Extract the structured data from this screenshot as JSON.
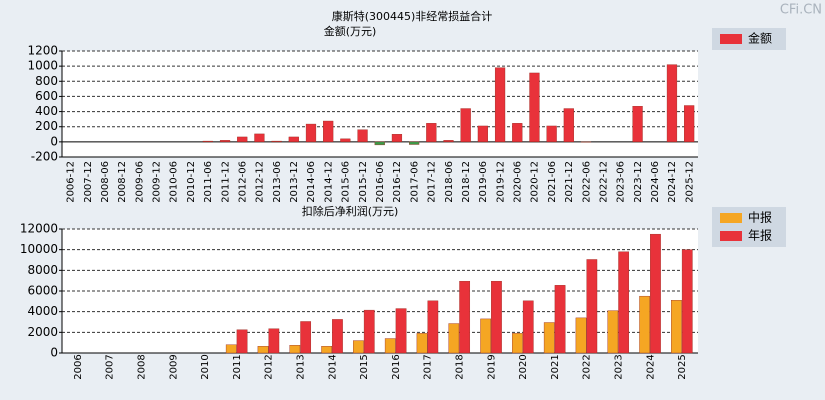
{
  "watermark": "CFi.CN",
  "chart_data": [
    {
      "type": "bar",
      "title": "康斯特(300445)非经常损益合计",
      "ylabel": "金额(万元)",
      "categories": [
        "2006-12",
        "2007-12",
        "2008-06",
        "2008-12",
        "2009-06",
        "2009-12",
        "2010-06",
        "2010-12",
        "2011-06",
        "2011-12",
        "2012-06",
        "2012-12",
        "2013-06",
        "2013-12",
        "2014-06",
        "2014-12",
        "2015-06",
        "2015-12",
        "2016-06",
        "2016-12",
        "2017-06",
        "2017-12",
        "2018-06",
        "2018-12",
        "2019-06",
        "2019-12",
        "2020-06",
        "2020-12",
        "2021-06",
        "2021-12",
        "2022-06",
        "2022-12",
        "2023-06",
        "2023-12",
        "2024-06",
        "2024-12",
        "2025-12"
      ],
      "series": [
        {
          "name": "金额",
          "color": "#e8323a",
          "negative_color": "#3a9a48",
          "values": [
            0,
            0,
            0,
            0,
            0,
            0,
            0,
            0,
            10,
            20,
            65,
            105,
            10,
            65,
            235,
            275,
            40,
            160,
            -40,
            100,
            -35,
            245,
            20,
            440,
            210,
            980,
            245,
            910,
            210,
            440,
            -5,
            0,
            0,
            470,
            0,
            1020,
            480
          ]
        }
      ],
      "ylim": [
        -200,
        1200
      ],
      "yticks": [
        -200,
        0,
        200,
        400,
        600,
        800,
        1000,
        1200
      ],
      "grid": true,
      "legend": "right"
    },
    {
      "type": "bar",
      "title": "扣除后净利润(万元)",
      "categories": [
        "2006",
        "2007",
        "2008",
        "2009",
        "2010",
        "2011",
        "2012",
        "2013",
        "2014",
        "2015",
        "2016",
        "2017",
        "2018",
        "2019",
        "2020",
        "2021",
        "2022",
        "2023",
        "2024",
        "2025"
      ],
      "series": [
        {
          "name": "中报",
          "color": "#f5a623",
          "values": [
            null,
            null,
            null,
            null,
            null,
            800,
            650,
            750,
            650,
            1200,
            1400,
            1900,
            2850,
            3300,
            1900,
            2950,
            3400,
            4100,
            5500,
            5100
          ]
        },
        {
          "name": "年报",
          "color": "#e8323a",
          "values": [
            null,
            null,
            null,
            null,
            null,
            2250,
            2350,
            3050,
            3250,
            4150,
            4300,
            5050,
            6950,
            6950,
            5050,
            6550,
            9050,
            9800,
            11500,
            10000
          ]
        }
      ],
      "ylim": [
        0,
        12000
      ],
      "yticks": [
        0,
        2000,
        4000,
        6000,
        8000,
        10000,
        12000
      ],
      "grid": true,
      "legend": "right"
    }
  ]
}
